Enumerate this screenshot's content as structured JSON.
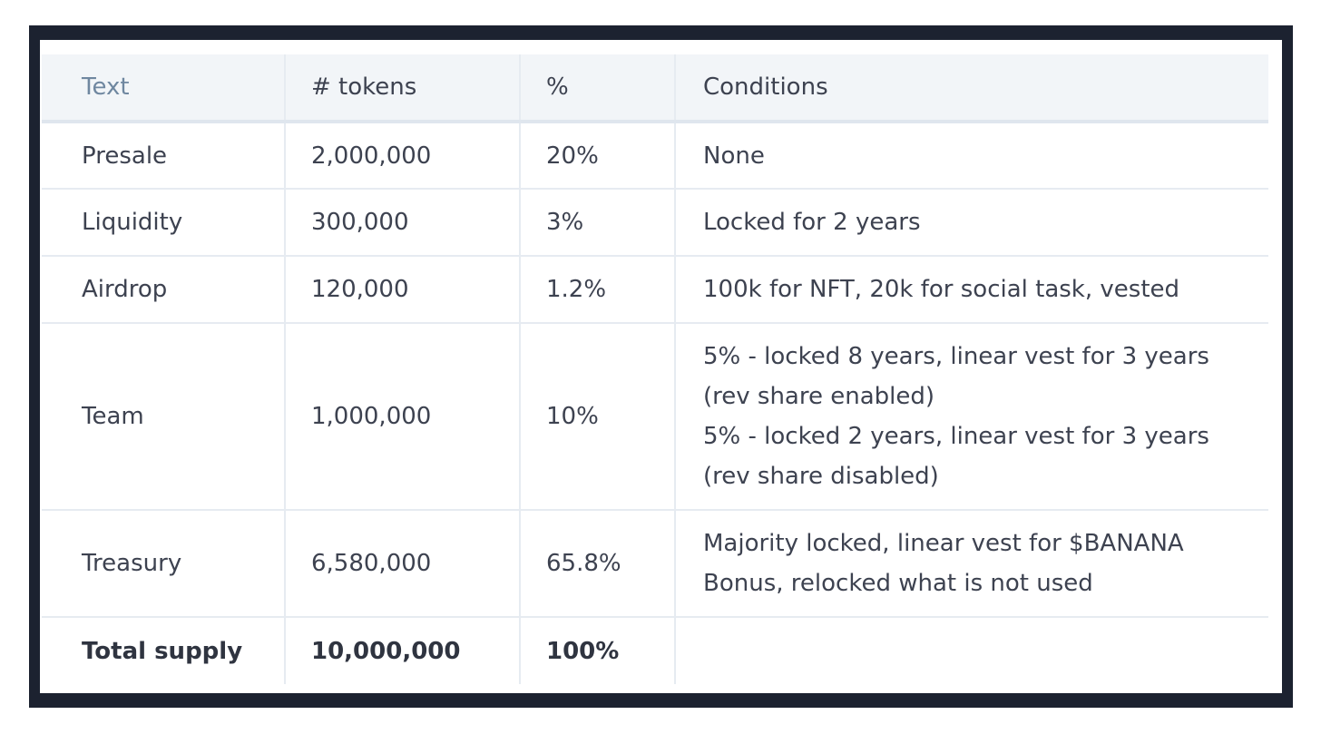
{
  "table": {
    "headers": [
      "Text",
      "# tokens",
      "%",
      "Conditions"
    ],
    "rows": [
      {
        "text": "Presale",
        "tokens": "2,000,000",
        "pct": "20%",
        "conditions": [
          "None"
        ]
      },
      {
        "text": "Liquidity",
        "tokens": "300,000",
        "pct": "3%",
        "conditions": [
          "Locked for 2 years"
        ]
      },
      {
        "text": "Airdrop",
        "tokens": "120,000",
        "pct": "1.2%",
        "conditions": [
          "100k for NFT, 20k for social task, vested"
        ]
      },
      {
        "text": "Team",
        "tokens": "1,000,000",
        "pct": "10%",
        "conditions": [
          "5% - locked 8 years, linear vest for 3 years",
          "(rev share enabled)",
          "5% - locked 2 years, linear vest for 3 years",
          "(rev share disabled)"
        ]
      },
      {
        "text": "Treasury",
        "tokens": "6,580,000",
        "pct": "65.8%",
        "conditions": [
          "Majority locked, linear vest for $BANANA",
          "Bonus, relocked what is not used"
        ]
      },
      {
        "text": "Total supply",
        "tokens": "10,000,000",
        "pct": "100%",
        "conditions": [
          ""
        ]
      }
    ]
  }
}
